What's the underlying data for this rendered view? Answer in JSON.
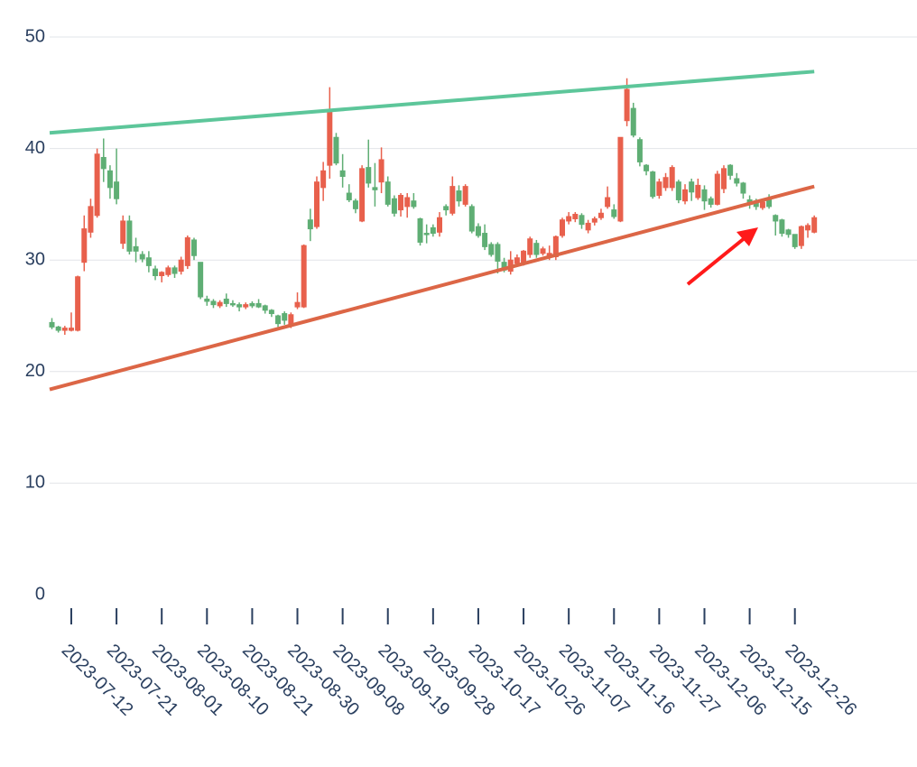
{
  "chart_data": {
    "type": "candlestick",
    "categories": [
      null,
      null,
      null,
      "2023-07-12",
      null,
      null,
      null,
      null,
      null,
      null,
      "2023-07-21",
      null,
      null,
      null,
      null,
      null,
      null,
      "2023-08-01",
      null,
      null,
      null,
      null,
      null,
      null,
      "2023-08-10",
      null,
      null,
      null,
      null,
      null,
      null,
      "2023-08-21",
      null,
      null,
      null,
      null,
      null,
      null,
      "2023-08-30",
      null,
      null,
      null,
      null,
      null,
      null,
      "2023-09-08",
      null,
      null,
      null,
      null,
      null,
      null,
      "2023-09-19",
      null,
      null,
      null,
      null,
      null,
      null,
      "2023-09-28",
      null,
      null,
      null,
      null,
      null,
      null,
      "2023-10-17",
      null,
      null,
      null,
      null,
      null,
      null,
      "2023-10-26",
      null,
      null,
      null,
      null,
      null,
      null,
      "2023-11-07",
      null,
      null,
      null,
      null,
      null,
      null,
      "2023-11-16",
      null,
      null,
      null,
      null,
      null,
      null,
      "2023-11-27",
      null,
      null,
      null,
      null,
      null,
      null,
      "2023-12-06",
      null,
      null,
      null,
      null,
      null,
      null,
      "2023-12-15",
      null,
      null,
      null,
      null,
      null,
      null,
      "2023-12-26",
      null,
      null,
      null
    ],
    "open": [
      24.4,
      24.0,
      23.7,
      23.7,
      23.7,
      29.8,
      32.5,
      34,
      39.2,
      38,
      37,
      31.5,
      33.5,
      31.2,
      30.5,
      30.2,
      29.2,
      28.6,
      28.7,
      29.3,
      29,
      29.5,
      31.8,
      29.8,
      26.5,
      26.3,
      25.9,
      26.5,
      26.1,
      26.0,
      25.8,
      26.1,
      26.1,
      25.9,
      25.5,
      25,
      25.2,
      24.2,
      25.8,
      25.8,
      33.6,
      33,
      36.5,
      38.5,
      41,
      38,
      36,
      35.3,
      33.5,
      38.3,
      36.5,
      37,
      37,
      35.5,
      34.5,
      34.8,
      35.3,
      33.7,
      32.4,
      32.9,
      32.5,
      34.8,
      34.2,
      36.2,
      35,
      34.8,
      33,
      32.4,
      31.4,
      31.4,
      29.8,
      29,
      29.7,
      29.8,
      30.5,
      31.5,
      30.6,
      30.3,
      30.3,
      32.2,
      33.5,
      33.7,
      34,
      32.7,
      33.4,
      33.8,
      34.8,
      34.5,
      33.5,
      42.5,
      43.6,
      40.8,
      38.5,
      37.9,
      35.8,
      36.5,
      36.5,
      37,
      35.3,
      37,
      35.6,
      36.3,
      35.5,
      35,
      36.4,
      38.5,
      37.3,
      36.9,
      35.4,
      35.3,
      34.7,
      35.5,
      34,
      33.6,
      32.7,
      32.3,
      31.3,
      32.7,
      32.5
    ],
    "high": [
      24.8,
      24.1,
      24.1,
      25.3,
      28.6,
      34,
      35.5,
      40,
      40.9,
      38.5,
      40,
      34,
      34,
      32,
      30.8,
      30.8,
      29.5,
      29.0,
      29.5,
      29.5,
      30.3,
      32.2,
      32,
      29.8,
      26.8,
      26.5,
      26.4,
      27,
      26.4,
      26.2,
      26.2,
      26.3,
      26.5,
      26,
      25.6,
      25.1,
      25.4,
      25.3,
      27.1,
      31.4,
      34.6,
      37.5,
      38.8,
      45.5,
      41.4,
      39.5,
      36.8,
      35.5,
      38.5,
      40.8,
      38.7,
      40.1,
      37.5,
      35.8,
      36,
      36,
      36,
      33.8,
      33.2,
      33.2,
      34.3,
      35,
      37.5,
      36.7,
      36.8,
      35,
      33.3,
      33.2,
      31.6,
      31.6,
      30.2,
      30.8,
      30.5,
      30.9,
      32.1,
      31.8,
      31.2,
      31.3,
      32.2,
      33.8,
      34.3,
      34.3,
      34.2,
      33.6,
      33.9,
      34.6,
      36.6,
      35,
      41,
      46.3,
      44.1,
      41,
      38.6,
      38,
      37.3,
      37.8,
      38.5,
      37.2,
      36.8,
      37.3,
      37.3,
      36.7,
      35.7,
      38,
      38.5,
      38.6,
      37.8,
      37,
      35.8,
      35.5,
      35.5,
      35.9,
      34.1,
      33.7,
      32.8,
      32.3,
      33.1,
      33.3,
      34
    ],
    "low": [
      23.8,
      23.5,
      23.3,
      23.6,
      23.6,
      29,
      32,
      33.8,
      37,
      35.5,
      35,
      31,
      30.5,
      29.8,
      29.8,
      28.9,
      28.2,
      28.0,
      28.5,
      28.4,
      28.7,
      29.2,
      30,
      26.5,
      25.9,
      25.7,
      25.7,
      25.8,
      25.8,
      25.4,
      25.6,
      25.7,
      25.7,
      25.2,
      24.9,
      24,
      24.2,
      23.9,
      25.6,
      25.7,
      31.7,
      32.8,
      35.3,
      37.3,
      38.5,
      36.5,
      35.2,
      34.2,
      33.4,
      36.5,
      34.8,
      36,
      34.8,
      33.9,
      33.9,
      33.8,
      34.6,
      31.3,
      31.5,
      32.1,
      32.1,
      34,
      34,
      34.8,
      34.8,
      32.4,
      32,
      30.9,
      30.3,
      28.8,
      28.9,
      28.7,
      29.4,
      29.5,
      30.2,
      30.2,
      30.4,
      30.0,
      30,
      32,
      33.2,
      33.4,
      32.8,
      32.4,
      33.1,
      33.6,
      34.6,
      33.7,
      33.4,
      42,
      41,
      38.4,
      37.6,
      35.5,
      35.5,
      36.2,
      36.2,
      35.1,
      35,
      35.3,
      35.4,
      34.5,
      34.7,
      34.9,
      36,
      37.2,
      36.6,
      35.5,
      34.6,
      34.5,
      34.5,
      34.6,
      32.2,
      32.1,
      32.0,
      31,
      31,
      32,
      32.4
    ],
    "close": [
      24.0,
      23.7,
      23.9,
      23.9,
      28.5,
      32.8,
      34.8,
      39.5,
      38.2,
      36.5,
      35.5,
      33.5,
      30.8,
      30.8,
      30.1,
      29.5,
      28.6,
      28.9,
      29.3,
      28.8,
      30,
      32,
      30.4,
      26.7,
      26.3,
      26.0,
      26.2,
      26.1,
      26.0,
      25.8,
      26.0,
      25.9,
      25.8,
      25.5,
      25.2,
      24.3,
      24.6,
      25.1,
      26.2,
      31.3,
      32.8,
      37,
      38,
      43.5,
      38.7,
      37.5,
      35.4,
      34.6,
      38.2,
      36.9,
      36.3,
      39,
      35,
      34.2,
      35.8,
      35.6,
      34.8,
      31.6,
      32.3,
      32.4,
      33.8,
      34.5,
      36.6,
      35.3,
      36.6,
      32.6,
      32.2,
      31.2,
      30.5,
      29.9,
      29.1,
      30,
      30.2,
      30.8,
      31.9,
      30.5,
      31,
      30.6,
      32.1,
      33.6,
      33.9,
      34.1,
      33.2,
      33.3,
      33.7,
      34.2,
      35.6,
      33.9,
      41,
      45.3,
      41.2,
      38.8,
      38,
      35.7,
      37,
      37.4,
      38.3,
      35.4,
      36.3,
      36.1,
      36.7,
      35.3,
      35.0,
      37.7,
      38.2,
      37.6,
      36.9,
      36,
      35.0,
      34.8,
      35.2,
      34.8,
      33.5,
      32.4,
      32.3,
      31.2,
      33,
      33.1,
      33.8
    ],
    "increasing_color": "#e8604c",
    "decreasing_color": "#5fae74",
    "xlim": [
      -0.35,
      133.9
    ],
    "ylim": [
      0,
      50
    ],
    "yticks": [
      0,
      10,
      20,
      30,
      40,
      50
    ],
    "grid": true,
    "shapes": [
      {
        "x0": -0.35,
        "y0": 41.4,
        "x1": 118,
        "y1": 46.9,
        "color": "#5dc69a"
      },
      {
        "x0": -0.35,
        "y0": 18.4,
        "x1": 118,
        "y1": 36.6,
        "color": "#dc6646"
      }
    ]
  }
}
